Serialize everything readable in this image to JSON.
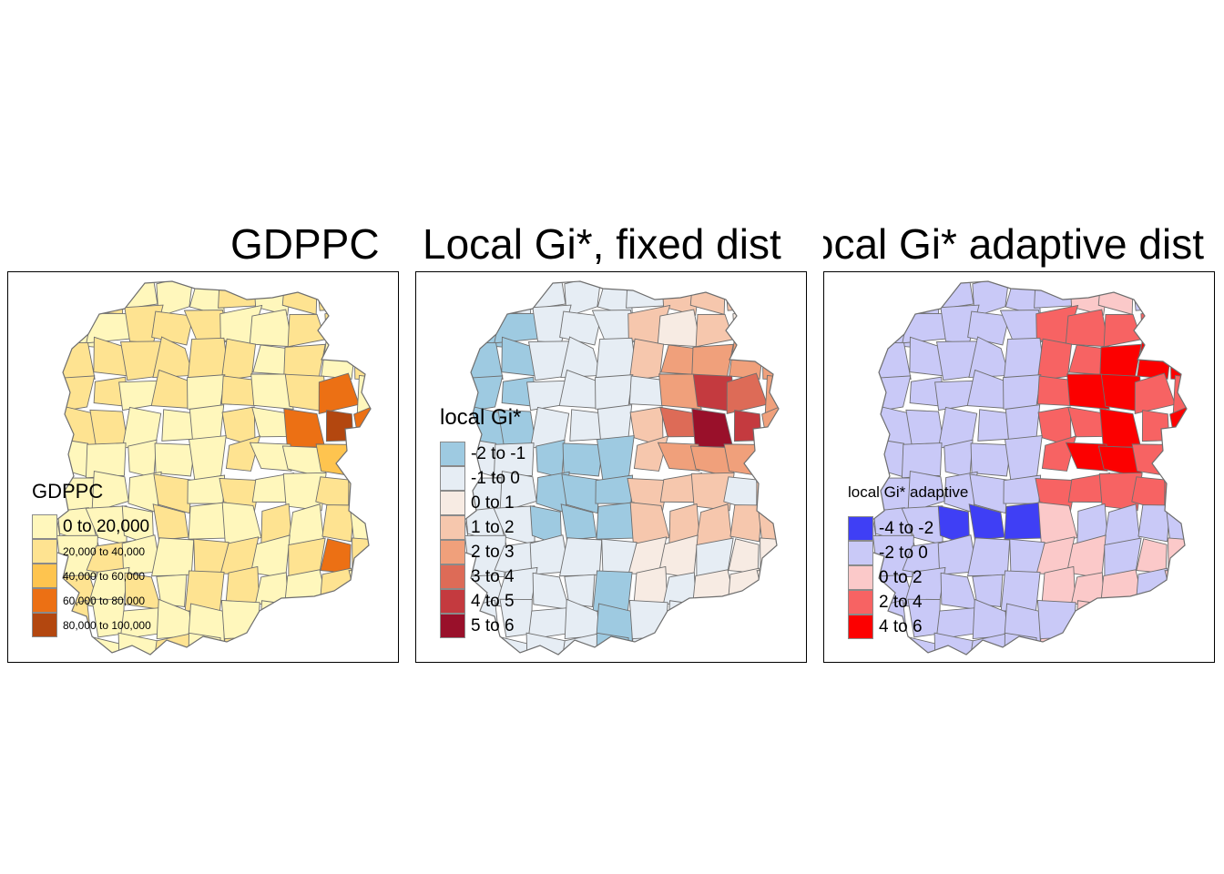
{
  "panels": [
    {
      "title": "GDPPC",
      "legend": {
        "title": "GDPPC",
        "items": [
          {
            "label": "0 to 20,000",
            "color": "#fff7bc",
            "size": "large"
          },
          {
            "label": "20,000 to 40,000",
            "color": "#fee391",
            "size": "small"
          },
          {
            "label": "40,000 to 60,000",
            "color": "#fec44f",
            "size": "small"
          },
          {
            "label": "60,000 to 80,000",
            "color": "#ec7014",
            "size": "small"
          },
          {
            "label": "80,000 to 100,000",
            "color": "#b3470f",
            "size": "small"
          }
        ]
      }
    },
    {
      "title": "Local Gi*, fixed dist",
      "legend": {
        "title": "local Gi*",
        "items": [
          {
            "label": "-2 to -1",
            "color": "#9ecae1"
          },
          {
            "label": "-1 to 0",
            "color": "#e6edf4"
          },
          {
            "label": "0 to 1",
            "color": "#f7ebe3"
          },
          {
            "label": "1 to 2",
            "color": "#f6c7ad"
          },
          {
            "label": "2 to 3",
            "color": "#f0a07b"
          },
          {
            "label": "3 to 4",
            "color": "#dd6b57"
          },
          {
            "label": "4 to 5",
            "color": "#c43a3f"
          },
          {
            "label": "5 to 6",
            "color": "#99102a"
          }
        ]
      }
    },
    {
      "title": "Local Gi* adaptive dist",
      "legend": {
        "title": "local Gi* adaptive",
        "items": [
          {
            "label": "-4 to -2",
            "color": "#3f3ff5"
          },
          {
            "label": "-2 to 0",
            "color": "#c9c9f7"
          },
          {
            "label": "0 to 2",
            "color": "#fbc9c9"
          },
          {
            "label": "2 to 4",
            "color": "#f76363"
          },
          {
            "label": "4 to 6",
            "color": "#fc0000"
          }
        ]
      }
    }
  ]
}
